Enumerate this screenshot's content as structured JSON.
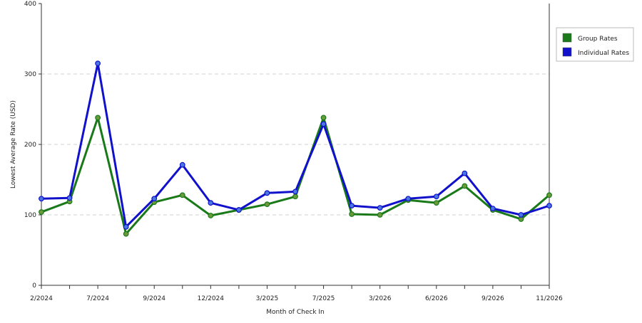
{
  "chart_data": {
    "type": "line",
    "xlabel": "Month of Check In",
    "ylabel": "Lowest Average Rate (USD)",
    "ylim": [
      0,
      400
    ],
    "yticks": [
      "0",
      "100",
      "200",
      "300",
      "400"
    ],
    "x_tick_labels": [
      "2/2024",
      "7/2024",
      "9/2024",
      "12/2024",
      "3/2025",
      "7/2025",
      "3/2026",
      "6/2026",
      "9/2026",
      "11/2026"
    ],
    "grid": true,
    "legend_position": "right",
    "series": [
      {
        "name": "Group Rates",
        "color": "#1a7a1a",
        "marker_color": "#6a9a3a",
        "values": [
          104,
          119,
          238,
          73,
          118,
          128,
          99,
          107,
          115,
          126,
          238,
          101,
          100,
          121,
          117,
          141,
          107,
          94,
          128
        ]
      },
      {
        "name": "Individual Rates",
        "color": "#1111cc",
        "marker_color": "#4a78e0",
        "values": [
          123,
          124,
          315,
          83,
          123,
          171,
          117,
          107,
          131,
          133,
          229,
          113,
          110,
          123,
          126,
          159,
          109,
          100,
          113
        ]
      }
    ]
  }
}
